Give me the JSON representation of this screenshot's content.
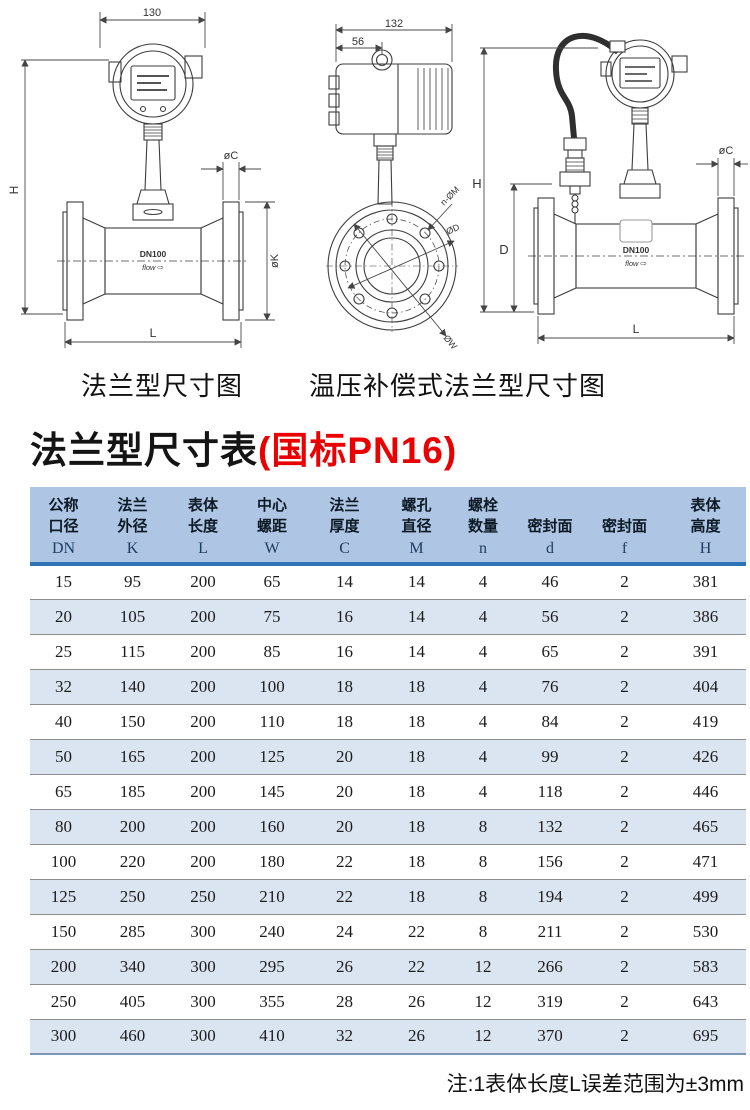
{
  "drawings": {
    "left": {
      "caption": "法兰型尺寸图",
      "dim_width": "130",
      "dim_height": "H",
      "dim_flange_thickness": "øC",
      "dim_flange_diameter": "øK",
      "dim_length": "L",
      "body_label": "DN100",
      "flow_label": "flow ⇨"
    },
    "middle": {
      "dim_width": "132",
      "dim_offset": "56",
      "label_bolt_holes": "n-ØM",
      "label_seal_diameter": "ØD",
      "label_pitch_diameter": "ØW"
    },
    "right": {
      "caption": "温压补偿式法兰型尺寸图",
      "dim_height": "H",
      "dim_body_height": "D",
      "dim_flange_thickness": "øC",
      "dim_length": "L",
      "body_label": "DN100",
      "flow_label": "flow ⇨"
    }
  },
  "title": {
    "main": "法兰型尺寸表",
    "highlight": "(国标PN16)"
  },
  "table": {
    "columns": [
      {
        "line1": "公称",
        "line2": "口径",
        "letter": "DN"
      },
      {
        "line1": "法兰",
        "line2": "外径",
        "letter": "K"
      },
      {
        "line1": "表体",
        "line2": "长度",
        "letter": "L"
      },
      {
        "line1": "中心",
        "line2": "螺距",
        "letter": "W"
      },
      {
        "line1": "法兰",
        "line2": "厚度",
        "letter": "C"
      },
      {
        "line1": "螺孔",
        "line2": "直径",
        "letter": "M"
      },
      {
        "line1": "螺栓",
        "line2": "数量",
        "letter": "n"
      },
      {
        "line1": "",
        "line2": "密封面",
        "letter": "d"
      },
      {
        "line1": "",
        "line2": "密封面",
        "letter": "f"
      },
      {
        "line1": "表体",
        "line2": "高度",
        "letter": "H"
      }
    ],
    "rows": [
      [
        15,
        95,
        200,
        65,
        14,
        14,
        4,
        46,
        2,
        381
      ],
      [
        20,
        105,
        200,
        75,
        16,
        14,
        4,
        56,
        2,
        386
      ],
      [
        25,
        115,
        200,
        85,
        16,
        14,
        4,
        65,
        2,
        391
      ],
      [
        32,
        140,
        200,
        100,
        18,
        18,
        4,
        76,
        2,
        404
      ],
      [
        40,
        150,
        200,
        110,
        18,
        18,
        4,
        84,
        2,
        419
      ],
      [
        50,
        165,
        200,
        125,
        20,
        18,
        4,
        99,
        2,
        426
      ],
      [
        65,
        185,
        200,
        145,
        20,
        18,
        4,
        118,
        2,
        446
      ],
      [
        80,
        200,
        200,
        160,
        20,
        18,
        8,
        132,
        2,
        465
      ],
      [
        100,
        220,
        200,
        180,
        22,
        18,
        8,
        156,
        2,
        471
      ],
      [
        125,
        250,
        250,
        210,
        22,
        18,
        8,
        194,
        2,
        499
      ],
      [
        150,
        285,
        300,
        240,
        24,
        22,
        8,
        211,
        2,
        530
      ],
      [
        200,
        340,
        300,
        295,
        26,
        22,
        12,
        266,
        2,
        583
      ],
      [
        250,
        405,
        300,
        355,
        28,
        26,
        12,
        319,
        2,
        643
      ],
      [
        300,
        460,
        300,
        410,
        32,
        26,
        12,
        370,
        2,
        695
      ]
    ]
  },
  "note": "注:1表体长度L误差范围为±3mm",
  "colors": {
    "header_bg": "#aec6e4",
    "stripe_bg": "#dbe5f2",
    "header_rule": "#2e75b6",
    "table_bottom_rule": "#7c96b5",
    "title_highlight": "#ea0000"
  }
}
